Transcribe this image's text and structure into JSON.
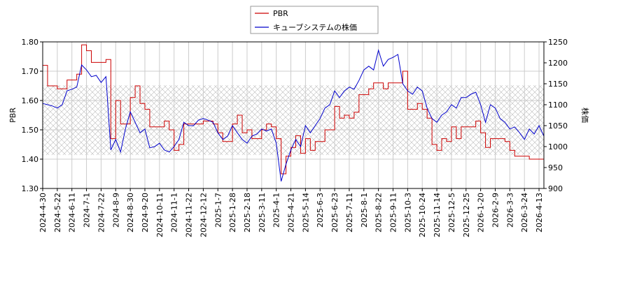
{
  "chart_data": {
    "type": "line",
    "categories": [
      "2024-4-30",
      null,
      null,
      "2024-5-22",
      null,
      null,
      "2024-6-11",
      null,
      null,
      "2024-7-1",
      null,
      null,
      "2024-7-22",
      null,
      null,
      "2024-8-9",
      null,
      null,
      "2024-8-30",
      null,
      null,
      "2024-9-20",
      null,
      null,
      "2024-10-11",
      null,
      null,
      "2024-11-1",
      null,
      null,
      "2024-11-22",
      null,
      null,
      "2024-12-12",
      null,
      null,
      "2025-1-7",
      null,
      null,
      "2025-1-28",
      null,
      null,
      "2025-2-18",
      null,
      null,
      "2025-3-11",
      null,
      null,
      "2025-4-1",
      null,
      null,
      "2025-4-21",
      null,
      null,
      "2025-5-14",
      null,
      null,
      "2025-6-3",
      null,
      null,
      "2025-6-23",
      null,
      null,
      "2025-7-11",
      null,
      null,
      "2025-8-1",
      null,
      null,
      "2025-8-22",
      null,
      null,
      "2025-9-11",
      null,
      null,
      "2025-10-3",
      null,
      null,
      "2025-10-24",
      null,
      null,
      "2025-11-14",
      null,
      null,
      "2025-12-5",
      null,
      null,
      "2025-12-25",
      null,
      null,
      "2026-1-20",
      null,
      null,
      "2026-2-9",
      null,
      null,
      "2026-3-3",
      null,
      null,
      "2026-3-24",
      null,
      null,
      "2026-4-13",
      null
    ],
    "ylabel": "PBR",
    "y2label": "株価",
    "ylim": [
      1.3,
      1.8
    ],
    "yticks": [
      {
        "value": 1.3,
        "label": "1.30"
      },
      {
        "value": 1.4,
        "label": "1.40"
      },
      {
        "value": 1.5,
        "label": "1.50"
      },
      {
        "value": 1.6,
        "label": "1.60"
      },
      {
        "value": 1.7,
        "label": "1.70"
      },
      {
        "value": 1.8,
        "label": "1.80"
      }
    ],
    "y2lim": [
      900,
      1250
    ],
    "y2ticks": [
      900,
      950,
      1000,
      1050,
      1100,
      1150,
      1200,
      1250
    ],
    "grid": true,
    "legend": "top",
    "shaded_band": [
      1.414,
      1.652
    ],
    "series": [
      {
        "name": "PBR",
        "color": "#cc0000",
        "step": true,
        "values": [
          1.72,
          1.65,
          1.65,
          1.64,
          1.64,
          1.67,
          1.67,
          1.69,
          1.79,
          1.77,
          1.73,
          1.73,
          1.73,
          1.74,
          1.47,
          1.6,
          1.52,
          1.52,
          1.61,
          1.65,
          1.59,
          1.57,
          1.51,
          1.51,
          1.51,
          1.53,
          1.5,
          1.43,
          1.45,
          1.52,
          1.52,
          1.52,
          1.52,
          1.53,
          1.53,
          1.52,
          1.49,
          1.46,
          1.46,
          1.52,
          1.55,
          1.49,
          1.5,
          1.47,
          1.47,
          1.5,
          1.52,
          1.51,
          1.47,
          1.35,
          1.41,
          1.44,
          1.48,
          1.42,
          1.47,
          1.43,
          1.46,
          1.46,
          1.5,
          1.5,
          1.58,
          1.54,
          1.55,
          1.54,
          1.56,
          1.62,
          1.62,
          1.64,
          1.66,
          1.66,
          1.64,
          1.66,
          1.66,
          1.66,
          1.7,
          1.57,
          1.57,
          1.59,
          1.57,
          1.54,
          1.45,
          1.43,
          1.47,
          1.46,
          1.51,
          1.47,
          1.51,
          1.51,
          1.51,
          1.53,
          1.49,
          1.44,
          1.47,
          1.47,
          1.47,
          1.46,
          1.43,
          1.41,
          1.41,
          1.41,
          1.4,
          1.4,
          1.4,
          1.4
        ]
      },
      {
        "name": "キューブシステムの株価",
        "color": "#0000cc",
        "axis": "y2",
        "values": [
          1103,
          1100,
          1097,
          1092,
          1100,
          1133,
          1137,
          1142,
          1195,
          1183,
          1167,
          1170,
          1153,
          1167,
          992,
          1017,
          987,
          1042,
          1083,
          1058,
          1033,
          1042,
          997,
          1000,
          1008,
          992,
          987,
          1000,
          1017,
          1058,
          1050,
          1050,
          1063,
          1067,
          1063,
          1058,
          1033,
          1017,
          1025,
          1050,
          1033,
          1017,
          1008,
          1025,
          1030,
          1042,
          1037,
          1042,
          1008,
          917,
          958,
          992,
          1017,
          1000,
          1050,
          1033,
          1050,
          1067,
          1092,
          1100,
          1133,
          1117,
          1133,
          1142,
          1137,
          1158,
          1183,
          1192,
          1183,
          1230,
          1192,
          1208,
          1213,
          1220,
          1150,
          1133,
          1125,
          1142,
          1133,
          1092,
          1067,
          1058,
          1075,
          1083,
          1100,
          1092,
          1117,
          1117,
          1125,
          1130,
          1100,
          1058,
          1100,
          1092,
          1067,
          1058,
          1042,
          1047,
          1033,
          1017,
          1042,
          1030,
          1050,
          1025
        ]
      }
    ]
  }
}
